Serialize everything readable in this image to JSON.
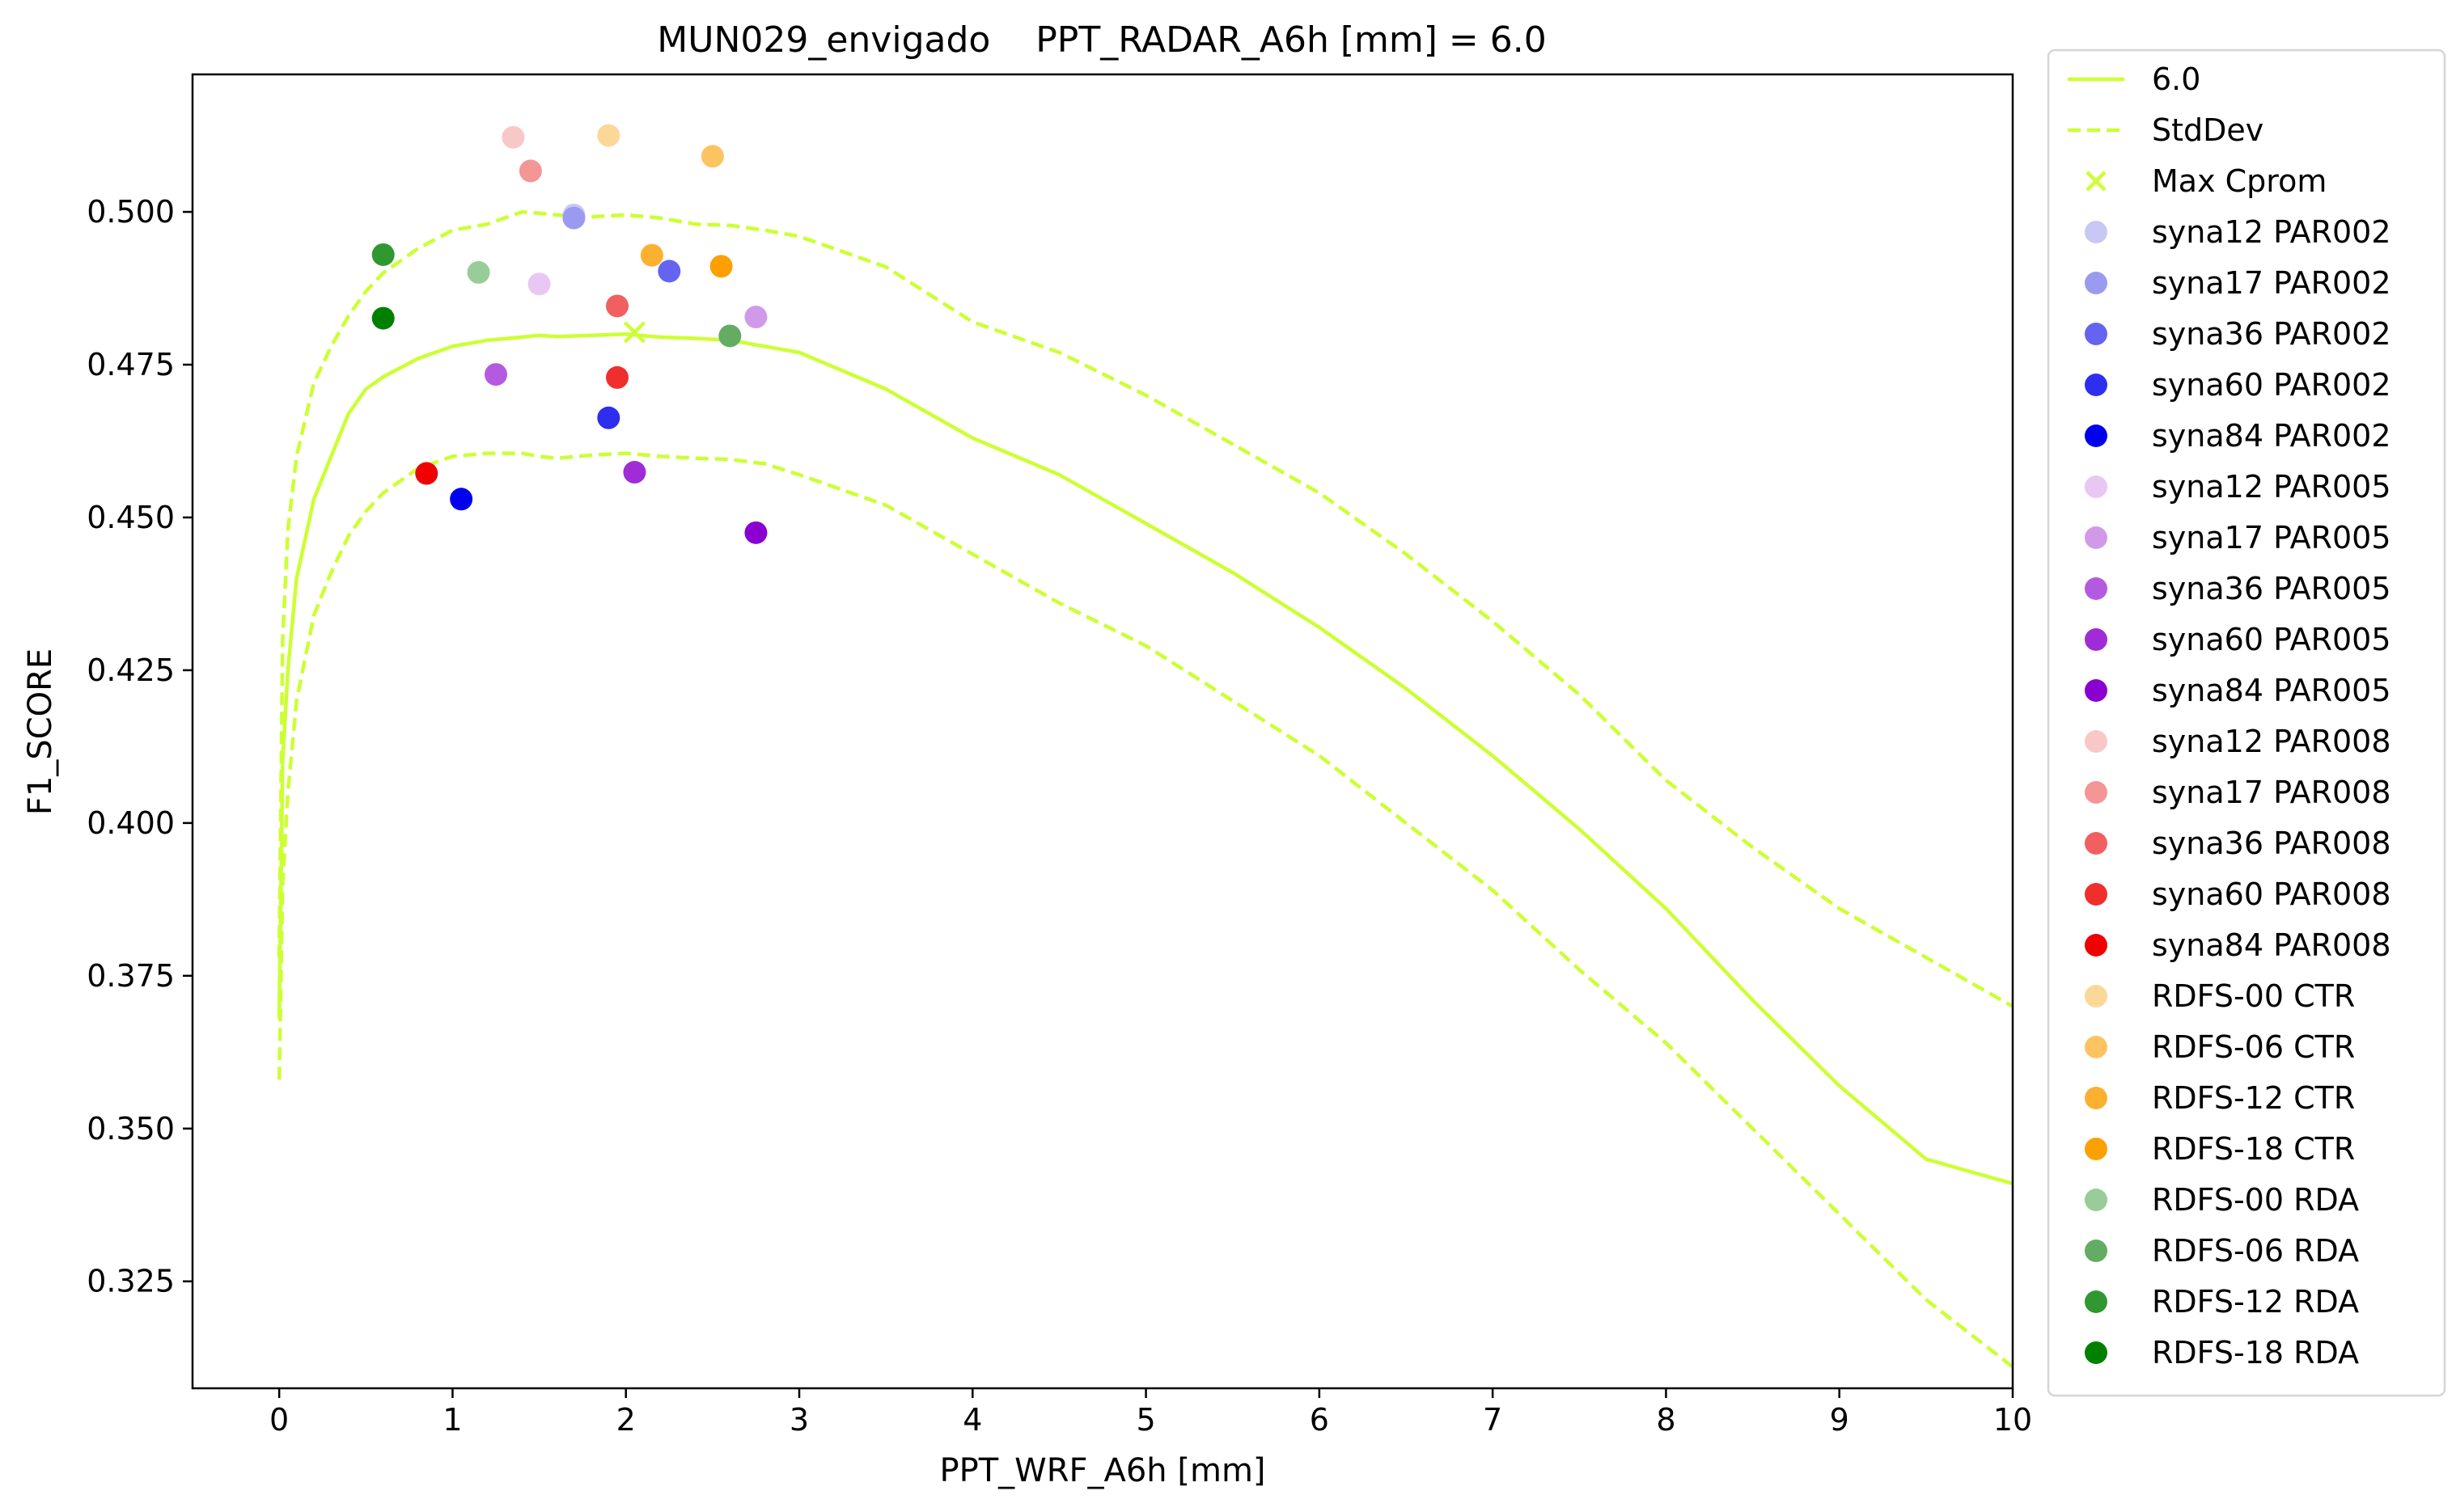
{
  "chart_data": {
    "type": "line",
    "title": "MUN029_envigado    PPT_RADAR_A6h [mm] = 6.0",
    "xlabel": "PPT_WRF_A6h [mm]",
    "ylabel": "F1_SCORE",
    "xlim": [
      -0.5,
      10
    ],
    "ylim": [
      0.3075,
      0.5225
    ],
    "xticks": [
      0,
      1,
      2,
      3,
      4,
      5,
      6,
      7,
      8,
      9,
      10
    ],
    "yticks": [
      0.325,
      0.35,
      0.375,
      0.4,
      0.425,
      0.45,
      0.475,
      0.5
    ],
    "xtick_labels": [
      "0",
      "1",
      "2",
      "3",
      "4",
      "5",
      "6",
      "7",
      "8",
      "9",
      "10"
    ],
    "ytick_labels": [
      "0.325",
      "0.350",
      "0.375",
      "0.400",
      "0.425",
      "0.450",
      "0.475",
      "0.500"
    ],
    "grid": false,
    "legend_position": "outside-right",
    "line_color": "#ccff33",
    "mean_line": {
      "name": "6.0",
      "x": [
        0,
        0.02,
        0.05,
        0.1,
        0.2,
        0.3,
        0.4,
        0.5,
        0.6,
        0.8,
        1.0,
        1.2,
        1.4,
        1.5,
        1.6,
        1.8,
        2.0,
        2.2,
        2.4,
        2.6,
        2.8,
        3.0,
        3.5,
        4.0,
        4.5,
        5.0,
        5.5,
        6.0,
        6.5,
        7.0,
        7.5,
        8.0,
        8.5,
        9.0,
        9.5,
        10.0
      ],
      "y": [
        0.368,
        0.41,
        0.425,
        0.44,
        0.453,
        0.46,
        0.467,
        0.471,
        0.473,
        0.476,
        0.478,
        0.479,
        0.4795,
        0.4798,
        0.4796,
        0.4798,
        0.48,
        0.4795,
        0.4793,
        0.479,
        0.478,
        0.477,
        0.471,
        0.463,
        0.457,
        0.449,
        0.441,
        0.432,
        0.422,
        0.411,
        0.399,
        0.386,
        0.371,
        0.357,
        0.345,
        0.341
      ]
    },
    "stddev_upper": {
      "name": "StdDev",
      "x": [
        0,
        0.02,
        0.05,
        0.1,
        0.2,
        0.3,
        0.4,
        0.5,
        0.6,
        0.8,
        1.0,
        1.2,
        1.4,
        1.5,
        1.6,
        1.8,
        2.0,
        2.2,
        2.4,
        2.6,
        2.8,
        3.0,
        3.5,
        4.0,
        4.5,
        5.0,
        5.5,
        6.0,
        6.5,
        7.0,
        7.5,
        8.0,
        8.5,
        9.0,
        9.5,
        10.0
      ],
      "y": [
        0.378,
        0.43,
        0.448,
        0.46,
        0.472,
        0.478,
        0.483,
        0.487,
        0.49,
        0.494,
        0.497,
        0.498,
        0.5,
        0.4998,
        0.4995,
        0.4992,
        0.4995,
        0.499,
        0.498,
        0.4978,
        0.497,
        0.496,
        0.491,
        0.482,
        0.477,
        0.47,
        0.462,
        0.454,
        0.444,
        0.433,
        0.421,
        0.407,
        0.396,
        0.386,
        0.378,
        0.37
      ]
    },
    "stddev_lower": {
      "name": "StdDev",
      "x": [
        0,
        0.02,
        0.05,
        0.1,
        0.2,
        0.3,
        0.4,
        0.5,
        0.6,
        0.8,
        1.0,
        1.2,
        1.4,
        1.5,
        1.6,
        1.8,
        2.0,
        2.2,
        2.4,
        2.6,
        2.8,
        3.0,
        3.5,
        4.0,
        4.5,
        5.0,
        5.5,
        6.0,
        6.5,
        7.0,
        7.5,
        8.0,
        8.5,
        9.0,
        9.5,
        10.0
      ],
      "y": [
        0.358,
        0.39,
        0.405,
        0.42,
        0.434,
        0.441,
        0.447,
        0.451,
        0.454,
        0.458,
        0.46,
        0.4605,
        0.4605,
        0.46,
        0.4597,
        0.4602,
        0.4605,
        0.46,
        0.4597,
        0.4595,
        0.4588,
        0.457,
        0.452,
        0.444,
        0.436,
        0.429,
        0.42,
        0.411,
        0.4,
        0.389,
        0.376,
        0.364,
        0.35,
        0.336,
        0.322,
        0.311
      ]
    },
    "max_cprom": {
      "name": "Max Cprom",
      "x": 2.05,
      "y": 0.4803
    },
    "points": [
      {
        "name": "syna12 PAR002",
        "color": "#c8c8f4",
        "x": 1.7,
        "y": 0.4995
      },
      {
        "name": "syna17 PAR002",
        "color": "#9a9af0",
        "x": 1.7,
        "y": 0.499
      },
      {
        "name": "syna36 PAR002",
        "color": "#6464f0",
        "x": 2.25,
        "y": 0.4903
      },
      {
        "name": "syna60 PAR002",
        "color": "#2e2eee",
        "x": 1.9,
        "y": 0.4663
      },
      {
        "name": "syna84 PAR002",
        "color": "#0000ee",
        "x": 1.05,
        "y": 0.453
      },
      {
        "name": "syna12 PAR005",
        "color": "#e8c8f2",
        "x": 1.5,
        "y": 0.4882
      },
      {
        "name": "syna17 PAR005",
        "color": "#d09ae8",
        "x": 2.75,
        "y": 0.4828
      },
      {
        "name": "syna36 PAR005",
        "color": "#b45ae0",
        "x": 1.25,
        "y": 0.4734
      },
      {
        "name": "syna60 PAR005",
        "color": "#a02cd8",
        "x": 2.05,
        "y": 0.4574
      },
      {
        "name": "syna84 PAR005",
        "color": "#8a00d0",
        "x": 2.75,
        "y": 0.4475
      },
      {
        "name": "syna12 PAR008",
        "color": "#f8c8c8",
        "x": 1.35,
        "y": 0.5122
      },
      {
        "name": "syna17 PAR008",
        "color": "#f49696",
        "x": 1.45,
        "y": 0.5067
      },
      {
        "name": "syna36 PAR008",
        "color": "#f06060",
        "x": 1.95,
        "y": 0.4846
      },
      {
        "name": "syna60 PAR008",
        "color": "#f02e2e",
        "x": 1.95,
        "y": 0.4729
      },
      {
        "name": "syna84 PAR008",
        "color": "#f00000",
        "x": 0.85,
        "y": 0.4572
      },
      {
        "name": "RDFS-00 CTR",
        "color": "#fcd898",
        "x": 1.9,
        "y": 0.5125
      },
      {
        "name": "RDFS-06 CTR",
        "color": "#fcc460",
        "x": 2.5,
        "y": 0.5091
      },
      {
        "name": "RDFS-12 CTR",
        "color": "#fcb030",
        "x": 2.15,
        "y": 0.4929
      },
      {
        "name": "RDFS-18 CTR",
        "color": "#fca000",
        "x": 2.55,
        "y": 0.4911
      },
      {
        "name": "RDFS-00 RDA",
        "color": "#98cc98",
        "x": 1.15,
        "y": 0.4901
      },
      {
        "name": "RDFS-06 RDA",
        "color": "#64ac64",
        "x": 2.6,
        "y": 0.4797
      },
      {
        "name": "RDFS-12 RDA",
        "color": "#309830",
        "x": 0.6,
        "y": 0.493
      },
      {
        "name": "RDFS-18 RDA",
        "color": "#008000",
        "x": 0.6,
        "y": 0.4826
      }
    ]
  }
}
